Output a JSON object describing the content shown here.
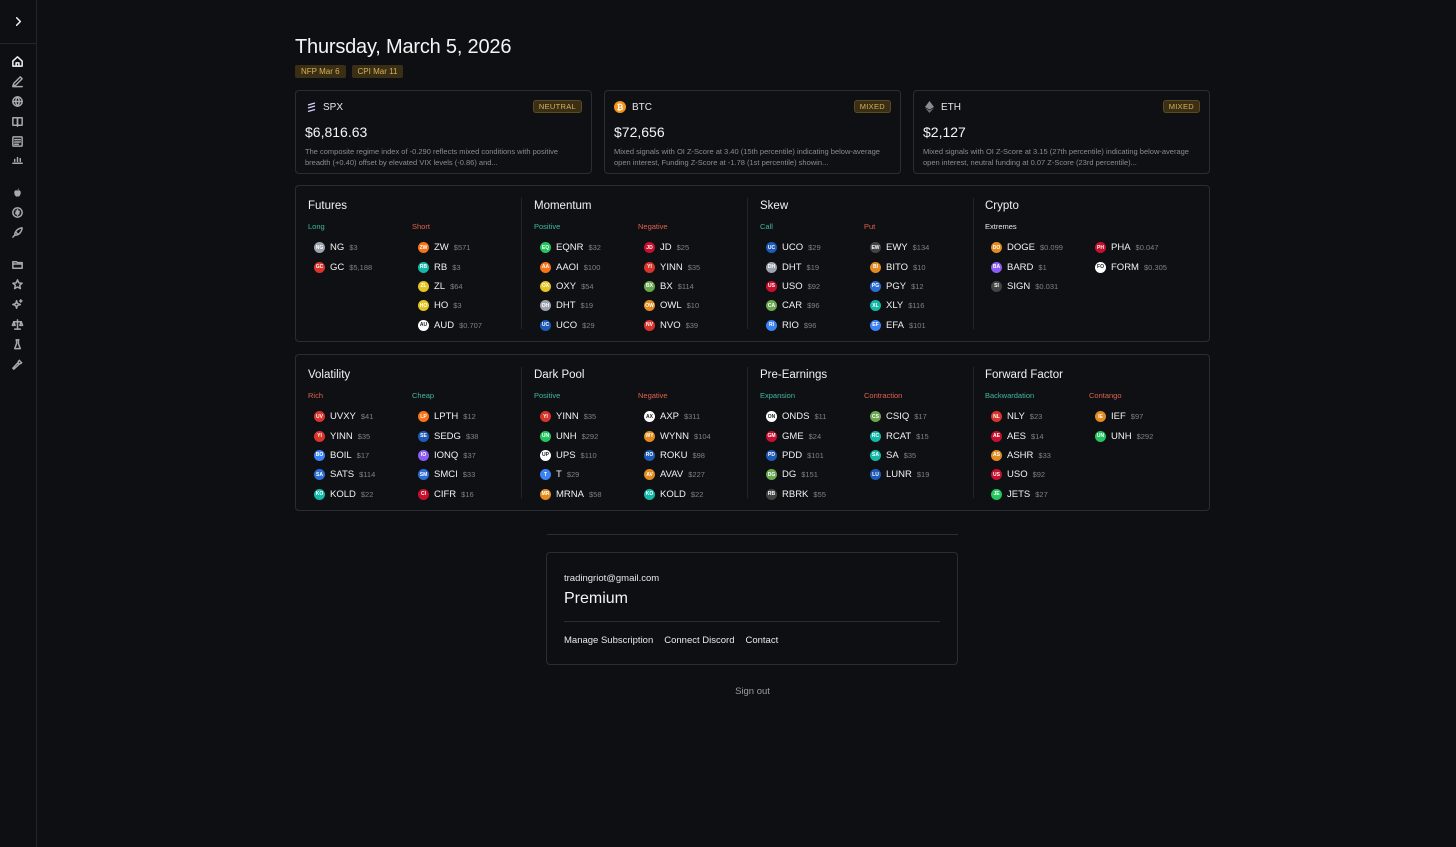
{
  "sidebar": {
    "icons": [
      "chevron-right-icon",
      "home-icon",
      "pencil-icon",
      "globe-icon",
      "book-icon",
      "newspaper-icon",
      "chart-bars-icon",
      "apple-icon",
      "coin-icon",
      "rocket-icon",
      "folder-icon",
      "star-icon",
      "sparkles-icon",
      "scale-icon",
      "flask-icon",
      "wrench-icon"
    ]
  },
  "header": {
    "date": "Thursday, March 5, 2026",
    "events": [
      "NFP Mar 6",
      "CPI Mar 11"
    ]
  },
  "cards": [
    {
      "symbol": "SPX",
      "badge": "NEUTRAL",
      "price": "$6,816.63",
      "desc": "The composite regime index of -0.290 reflects mixed conditions with positive breadth (+0.40) offset by elevated VIX levels (-0.86) and..."
    },
    {
      "symbol": "BTC",
      "badge": "MIXED",
      "price": "$72,656",
      "desc": "Mixed signals with OI Z-Score at 3.40 (15th percentile) indicating below-average open interest, Funding Z-Score at -1.78 (1st percentile) showin..."
    },
    {
      "symbol": "ETH",
      "badge": "MIXED",
      "price": "$2,127",
      "desc": "Mixed signals with OI Z-Score at 3.15 (27th percentile) indicating below-average open interest, neutral funding at 0.07 Z-Score (23rd percentile)..."
    }
  ],
  "sections": {
    "futures": {
      "title": "Futures",
      "col1_label": "Long",
      "col2_label": "Short",
      "col1": [
        {
          "sym": "NG",
          "price": "$3"
        },
        {
          "sym": "GC",
          "price": "$5,188"
        }
      ],
      "col2": [
        {
          "sym": "ZW",
          "price": "$571"
        },
        {
          "sym": "RB",
          "price": "$3"
        },
        {
          "sym": "ZL",
          "price": "$64"
        },
        {
          "sym": "HO",
          "price": "$3"
        },
        {
          "sym": "AUD",
          "price": "$0.707"
        }
      ]
    },
    "momentum": {
      "title": "Momentum",
      "col1_label": "Positive",
      "col2_label": "Negative",
      "col1": [
        {
          "sym": "EQNR",
          "price": "$32"
        },
        {
          "sym": "AAOI",
          "price": "$100"
        },
        {
          "sym": "OXY",
          "price": "$54"
        },
        {
          "sym": "DHT",
          "price": "$19"
        },
        {
          "sym": "UCO",
          "price": "$29"
        }
      ],
      "col2": [
        {
          "sym": "JD",
          "price": "$25"
        },
        {
          "sym": "YINN",
          "price": "$35"
        },
        {
          "sym": "BX",
          "price": "$114"
        },
        {
          "sym": "OWL",
          "price": "$10"
        },
        {
          "sym": "NVO",
          "price": "$39"
        }
      ]
    },
    "skew": {
      "title": "Skew",
      "col1_label": "Call",
      "col2_label": "Put",
      "col1": [
        {
          "sym": "UCO",
          "price": "$29"
        },
        {
          "sym": "DHT",
          "price": "$19"
        },
        {
          "sym": "USO",
          "price": "$92"
        },
        {
          "sym": "CAR",
          "price": "$96"
        },
        {
          "sym": "RIO",
          "price": "$96"
        }
      ],
      "col2": [
        {
          "sym": "EWY",
          "price": "$134"
        },
        {
          "sym": "BITO",
          "price": "$10"
        },
        {
          "sym": "PGY",
          "price": "$12"
        },
        {
          "sym": "XLY",
          "price": "$116"
        },
        {
          "sym": "EFA",
          "price": "$101"
        }
      ]
    },
    "crypto": {
      "title": "Crypto",
      "col1_label": "Extremes",
      "col2_label": "",
      "col1": [
        {
          "sym": "DOGE",
          "price": "$0.099"
        },
        {
          "sym": "BARD",
          "price": "$1"
        },
        {
          "sym": "SIGN",
          "price": "$0.031"
        }
      ],
      "col2": [
        {
          "sym": "PHA",
          "price": "$0.047"
        },
        {
          "sym": "FORM",
          "price": "$0.305"
        }
      ]
    },
    "volatility": {
      "title": "Volatility",
      "col1_label": "Rich",
      "col2_label": "Cheap",
      "col1": [
        {
          "sym": "UVXY",
          "price": "$41"
        },
        {
          "sym": "YINN",
          "price": "$35"
        },
        {
          "sym": "BOIL",
          "price": "$17"
        },
        {
          "sym": "SATS",
          "price": "$114"
        },
        {
          "sym": "KOLD",
          "price": "$22"
        }
      ],
      "col2": [
        {
          "sym": "LPTH",
          "price": "$12"
        },
        {
          "sym": "SEDG",
          "price": "$38"
        },
        {
          "sym": "IONQ",
          "price": "$37"
        },
        {
          "sym": "SMCI",
          "price": "$33"
        },
        {
          "sym": "CIFR",
          "price": "$16"
        }
      ]
    },
    "darkpool": {
      "title": "Dark Pool",
      "col1_label": "Positive",
      "col2_label": "Negative",
      "col1": [
        {
          "sym": "YINN",
          "price": "$35"
        },
        {
          "sym": "UNH",
          "price": "$292"
        },
        {
          "sym": "UPS",
          "price": "$110"
        },
        {
          "sym": "T",
          "price": "$29"
        },
        {
          "sym": "MRNA",
          "price": "$58"
        }
      ],
      "col2": [
        {
          "sym": "AXP",
          "price": "$311"
        },
        {
          "sym": "WYNN",
          "price": "$104"
        },
        {
          "sym": "ROKU",
          "price": "$98"
        },
        {
          "sym": "AVAV",
          "price": "$227"
        },
        {
          "sym": "KOLD",
          "price": "$22"
        }
      ]
    },
    "preearnings": {
      "title": "Pre-Earnings",
      "col1_label": "Expansion",
      "col2_label": "Contraction",
      "col1": [
        {
          "sym": "ONDS",
          "price": "$11"
        },
        {
          "sym": "GME",
          "price": "$24"
        },
        {
          "sym": "PDD",
          "price": "$101"
        },
        {
          "sym": "DG",
          "price": "$151"
        },
        {
          "sym": "RBRK",
          "price": "$55"
        }
      ],
      "col2": [
        {
          "sym": "CSIQ",
          "price": "$17"
        },
        {
          "sym": "RCAT",
          "price": "$15"
        },
        {
          "sym": "SA",
          "price": "$35"
        },
        {
          "sym": "LUNR",
          "price": "$19"
        }
      ]
    },
    "forwardfactor": {
      "title": "Forward Factor",
      "col1_label": "Backwardation",
      "col2_label": "Contango",
      "col1": [
        {
          "sym": "NLY",
          "price": "$23"
        },
        {
          "sym": "AES",
          "price": "$14"
        },
        {
          "sym": "ASHR",
          "price": "$33"
        },
        {
          "sym": "USO",
          "price": "$92"
        },
        {
          "sym": "JETS",
          "price": "$27"
        }
      ],
      "col2": [
        {
          "sym": "IEF",
          "price": "$97"
        },
        {
          "sym": "UNH",
          "price": "$292"
        }
      ]
    }
  },
  "account": {
    "email": "tradingriot@gmail.com",
    "plan": "Premium",
    "links": [
      "Manage Subscription",
      "Connect Discord",
      "Contact"
    ],
    "signout": "Sign out"
  },
  "colors": {
    "accent_green": "#3fb8a3",
    "accent_red": "#e0614e",
    "badge_gold": "#d9b15a"
  }
}
